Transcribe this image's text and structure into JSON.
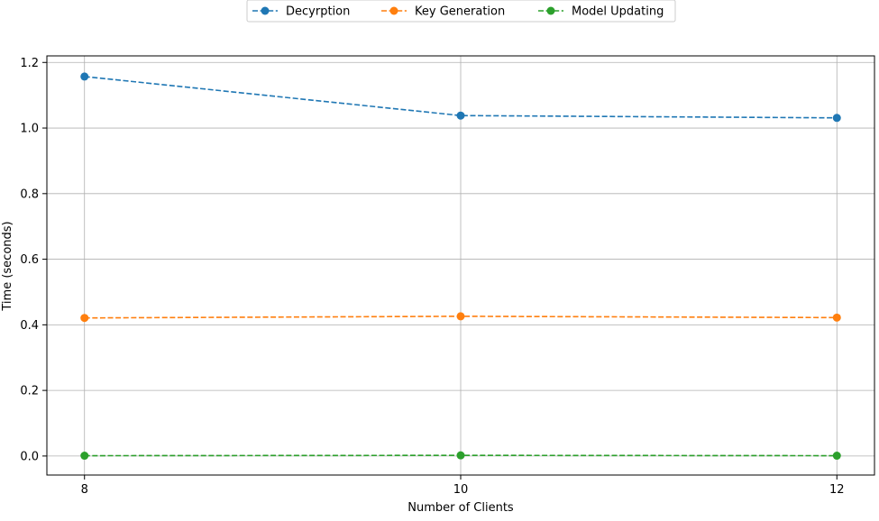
{
  "chart_data": {
    "type": "line",
    "title": "",
    "xlabel": "Number of Clients",
    "ylabel": "Time (seconds)",
    "x": [
      8,
      10,
      12
    ],
    "xticks": [
      "8",
      "10",
      "12"
    ],
    "yticks": [
      "0.0",
      "0.2",
      "0.4",
      "0.6",
      "0.8",
      "1.0",
      "1.2"
    ],
    "xlim": [
      7.8,
      12.2
    ],
    "ylim": [
      -0.058,
      1.22
    ],
    "grid": true,
    "legend_position": "top-center",
    "series": [
      {
        "name": "Decyrption",
        "color": "#1f77b4",
        "values": [
          1.157,
          1.038,
          1.031
        ]
      },
      {
        "name": "Key Generation",
        "color": "#ff7f0e",
        "values": [
          0.421,
          0.426,
          0.422
        ]
      },
      {
        "name": "Model Updating",
        "color": "#2ca02c",
        "values": [
          0.001,
          0.002,
          0.001
        ]
      }
    ]
  }
}
